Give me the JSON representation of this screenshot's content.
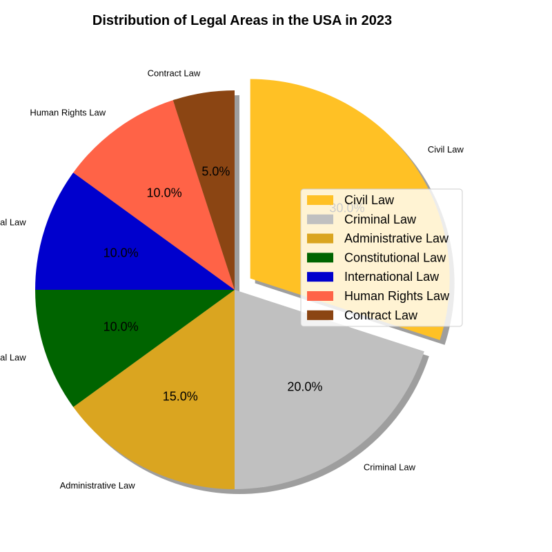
{
  "chart_data": {
    "type": "pie",
    "title": "Distribution of Legal Areas in the USA in 2023",
    "categories": [
      "Civil Law",
      "Criminal Law",
      "Administrative Law",
      "Constitutional Law",
      "International Law",
      "Human Rights Law",
      "Contract Law"
    ],
    "values": [
      30,
      20,
      15,
      10,
      10,
      10,
      5
    ],
    "percent_labels": [
      "30.0%",
      "20.0%",
      "15.0%",
      "10.0%",
      "10.0%",
      "10.0%",
      "5.0%"
    ],
    "colors": [
      "#FFC125",
      "#C0C0C0",
      "#DAA520",
      "#006400",
      "#0000CD",
      "#FF6347",
      "#8B4513"
    ],
    "exploded": [
      "Civil Law"
    ],
    "shadow": true,
    "start_angle_deg": 90,
    "direction": "clockwise",
    "legend": {
      "position": "right",
      "entries": [
        "Civil Law",
        "Criminal Law",
        "Administrative Law",
        "Constitutional Law",
        "International Law",
        "Human Rights Law",
        "Contract Law"
      ]
    }
  }
}
